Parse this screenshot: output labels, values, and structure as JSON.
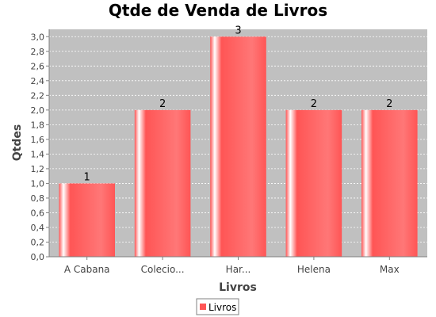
{
  "chart_data": {
    "type": "bar",
    "title": "Qtde de Venda de Livros",
    "xlabel": "Livros",
    "ylabel": "Qtdes",
    "categories": [
      "A Cabana",
      "Colecio...",
      "Har...",
      "Helena",
      "Max"
    ],
    "series": [
      {
        "name": "Livros",
        "values": [
          1,
          2,
          3,
          2,
          2
        ]
      }
    ],
    "data_labels": [
      "1",
      "2",
      "3",
      "2",
      "2"
    ],
    "ylim": [
      0,
      3.1
    ],
    "yticks": [
      "0,0",
      "0,2",
      "0,4",
      "0,6",
      "0,8",
      "1,0",
      "1,2",
      "1,4",
      "1,6",
      "1,8",
      "2,0",
      "2,2",
      "2,4",
      "2,6",
      "2,8",
      "3,0"
    ],
    "grid": true,
    "legend_position": "bottom",
    "colors": {
      "bar": "#ff5555",
      "bar_highlight": "#ffffff",
      "plot_background": "#c0c0c0",
      "grid": "#ffffff"
    }
  }
}
